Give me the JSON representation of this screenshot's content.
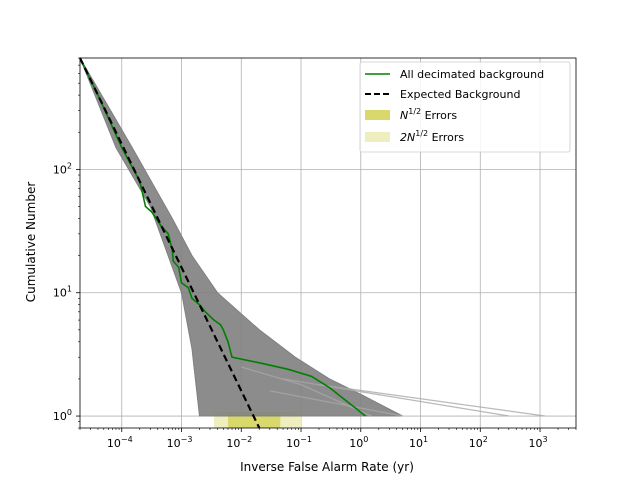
{
  "chart_data": {
    "type": "line",
    "title": "",
    "xlabel": "Inverse False Alarm Rate (yr)",
    "ylabel": "Cumulative Number",
    "xscale": "log",
    "yscale": "log",
    "xlim": [
      2e-05,
      4000
    ],
    "ylim": [
      0.8,
      800
    ],
    "grid": true,
    "legend_position": "top-right",
    "x_ticks": [
      {
        "value": 0.0001,
        "base": "10",
        "exp": "−4"
      },
      {
        "value": 0.001,
        "base": "10",
        "exp": "−3"
      },
      {
        "value": 0.01,
        "base": "10",
        "exp": "−2"
      },
      {
        "value": 0.1,
        "base": "10",
        "exp": "−1"
      },
      {
        "value": 1,
        "base": "10",
        "exp": "0"
      },
      {
        "value": 10,
        "base": "10",
        "exp": "1"
      },
      {
        "value": 100,
        "base": "10",
        "exp": "2"
      },
      {
        "value": 1000,
        "base": "10",
        "exp": "3"
      }
    ],
    "y_ticks": [
      {
        "value": 1,
        "base": "10",
        "exp": "0"
      },
      {
        "value": 10,
        "base": "10",
        "exp": "1"
      },
      {
        "value": 100,
        "base": "10",
        "exp": "2"
      }
    ],
    "series": [
      {
        "name": "All decimated background",
        "color": "#008000",
        "style": "solid",
        "points": [
          [
            2e-05,
            800
          ],
          [
            4e-05,
            400
          ],
          [
            0.0001,
            150
          ],
          [
            0.0002,
            80
          ],
          [
            0.00025,
            50
          ],
          [
            0.00032,
            45
          ],
          [
            0.00045,
            35
          ],
          [
            0.0006,
            30
          ],
          [
            0.0007,
            22
          ],
          [
            0.00073,
            18
          ],
          [
            0.0009,
            16
          ],
          [
            0.001,
            12
          ],
          [
            0.0013,
            11
          ],
          [
            0.0015,
            9
          ],
          [
            0.002,
            8
          ],
          [
            0.0025,
            7
          ],
          [
            0.0035,
            6
          ],
          [
            0.0045,
            5.5
          ],
          [
            0.005,
            5
          ],
          [
            0.006,
            4
          ],
          [
            0.007,
            3
          ],
          [
            0.02,
            2.7
          ],
          [
            0.06,
            2.4
          ],
          [
            0.15,
            2.1
          ],
          [
            0.3,
            1.7
          ],
          [
            1.2,
            1
          ]
        ]
      },
      {
        "name": "Expected Background",
        "color": "#000000",
        "style": "dashed",
        "points": [
          [
            2e-05,
            800
          ],
          [
            0.02,
            0.8
          ]
        ]
      }
    ],
    "background_band": {
      "color": "#808080",
      "upper": [
        [
          2e-05,
          800
        ],
        [
          0.00015,
          150
        ],
        [
          0.0007,
          40
        ],
        [
          0.0015,
          20
        ],
        [
          0.004,
          10
        ],
        [
          0.02,
          5
        ],
        [
          0.08,
          3
        ],
        [
          0.3,
          2
        ],
        [
          1,
          1.5
        ],
        [
          5,
          1
        ]
      ],
      "lower": [
        [
          2e-05,
          800
        ],
        [
          8e-05,
          150
        ],
        [
          0.0003,
          50
        ],
        [
          0.001,
          10
        ],
        [
          0.0015,
          3.5
        ],
        [
          0.002,
          1
        ]
      ],
      "outliers": [
        [
          [
            0.05,
            2
          ],
          [
            300,
            1
          ]
        ],
        [
          [
            0.2,
            1.8
          ],
          [
            1200,
            1
          ]
        ],
        [
          [
            0.03,
            1.6
          ],
          [
            5,
            1
          ]
        ],
        [
          [
            0.01,
            2.5
          ],
          [
            0.1,
            1.8
          ],
          [
            1.5,
            1
          ]
        ]
      ]
    },
    "error_bands": [
      {
        "name": "$N^{1/2}$ Errors",
        "label_base": "N",
        "label_sup": "1/2",
        "label_suffix": " Errors",
        "color": "#d9d96b",
        "x_range": [
          0.006,
          0.045
        ]
      },
      {
        "name": "$2N^{1/2}$ Errors",
        "label_base": "2N",
        "label_sup": "1/2",
        "label_suffix": " Errors",
        "color": "#eeeebf",
        "x_range": [
          0.0035,
          0.1
        ]
      }
    ]
  }
}
